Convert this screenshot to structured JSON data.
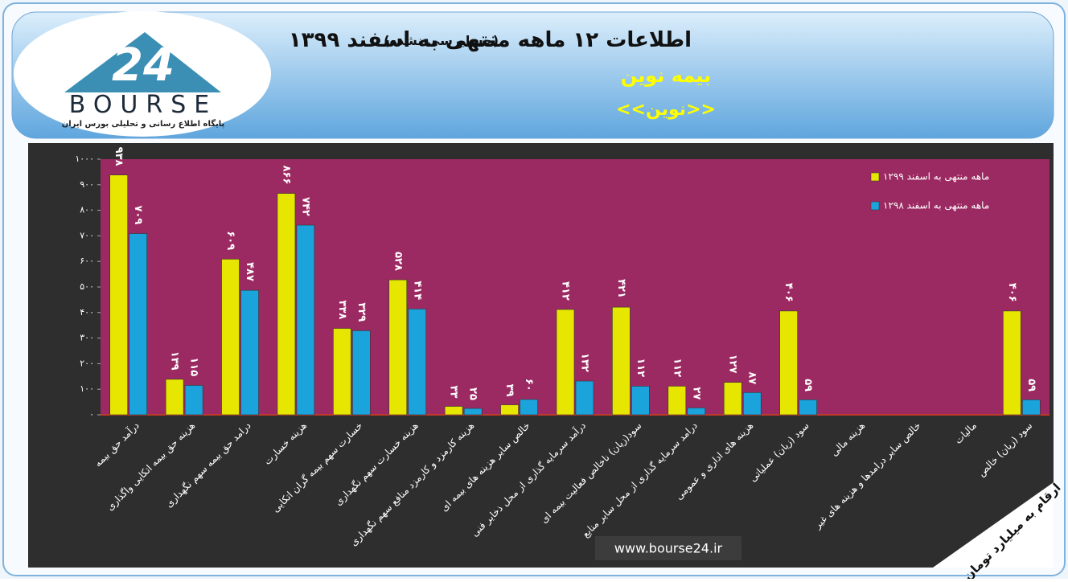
{
  "header": {
    "title": "اطلاعات ۱۲ ماهه منتهی به اسفند ۱۳۹۹",
    "subtitle": "(حسابرسی نشده)",
    "company": "بیمه نوین",
    "symbol": "<<نوین>>"
  },
  "logo": {
    "number": "24",
    "name": "BOURSE",
    "tagline": "پایگاه اطلاع رسانی و تحلیلی بورس ایران"
  },
  "footer": {
    "website": "www.bourse24.ir",
    "unit_note": "ارقام به میلیارد تومان"
  },
  "chart_data": {
    "type": "bar",
    "categories": [
      "درآمد حق بیمه",
      "هزینه حق بیمه اتکایی واگذاری",
      "درامد حق بیمه سهم نگهداری",
      "هزینه خسارت",
      "خسارت سهم بیمه گران اتکایی",
      "هزینه خسارت سهم نگهداری",
      "هزینه کارمزد و کارمزد منافع سهم نگهداری",
      "خالص سایر هزینه های بیمه ای",
      "درآمد سرمایه گذاری از محل ذخایر فنی",
      "سود(زیان) ناخالص فعالیت بیمه ای",
      "درامد سرمایه گذاری از محل سایر منابع",
      "هزینه های اداری و عمومی",
      "سود (زیان) عملیاتی",
      "هزینه مالی",
      "خالص سایر درامدها و هزینه های غیر",
      "مالیات",
      "سود (زیان) خالص"
    ],
    "series": [
      {
        "name": "۱۲ماهه منتهی به اسفند ۹۹",
        "color": "#e6e600",
        "values": [
          938,
          139,
          609,
          866,
          338,
          528,
          33,
          39,
          412,
          421,
          112,
          127,
          406,
          null,
          null,
          null,
          406
        ],
        "value_labels": [
          "۹۳۸",
          "۱۳۹",
          "۶۰۹",
          "۸۶۶",
          "۳۳۸",
          "۵۲۸",
          "۳۳",
          "۳۹",
          "۴۱۲",
          "۴۲۱",
          "۱۱۲",
          "۱۲۷",
          "۴۰۶",
          null,
          null,
          null,
          "۴۰۶"
        ]
      },
      {
        "name": "۱۲ماهه منتهی به اسفند ۹۸",
        "color": "#1ba3dc",
        "values": [
          709,
          115,
          487,
          742,
          329,
          414,
          25,
          60,
          132,
          112,
          27,
          87,
          59,
          null,
          null,
          null,
          59
        ],
        "value_labels": [
          "۷۰۹",
          "۱۱۵",
          "۴۸۷",
          "۷۴۲",
          "۳۲۹",
          "۴۱۴",
          "۲۵",
          "۶۰",
          "۱۳۲",
          "۱۱۲",
          "۲۷",
          "۸۷",
          "۵۹",
          null,
          null,
          null,
          "۵۹"
        ]
      }
    ],
    "ylim": [
      0,
      1000
    ],
    "yticks": [
      {
        "value": 0,
        "label": "۰"
      },
      {
        "value": 100,
        "label": "۱۰۰"
      },
      {
        "value": 200,
        "label": "۲۰۰"
      },
      {
        "value": 300,
        "label": "۳۰۰"
      },
      {
        "value": 400,
        "label": "۴۰۰"
      },
      {
        "value": 500,
        "label": "۵۰۰"
      },
      {
        "value": 600,
        "label": "۶۰۰"
      },
      {
        "value": 700,
        "label": "۷۰۰"
      },
      {
        "value": 800,
        "label": "۸۰۰"
      },
      {
        "value": 900,
        "label": "۹۰۰"
      },
      {
        "value": 1000,
        "label": "۱۰۰۰"
      }
    ],
    "legend": "top-right"
  }
}
